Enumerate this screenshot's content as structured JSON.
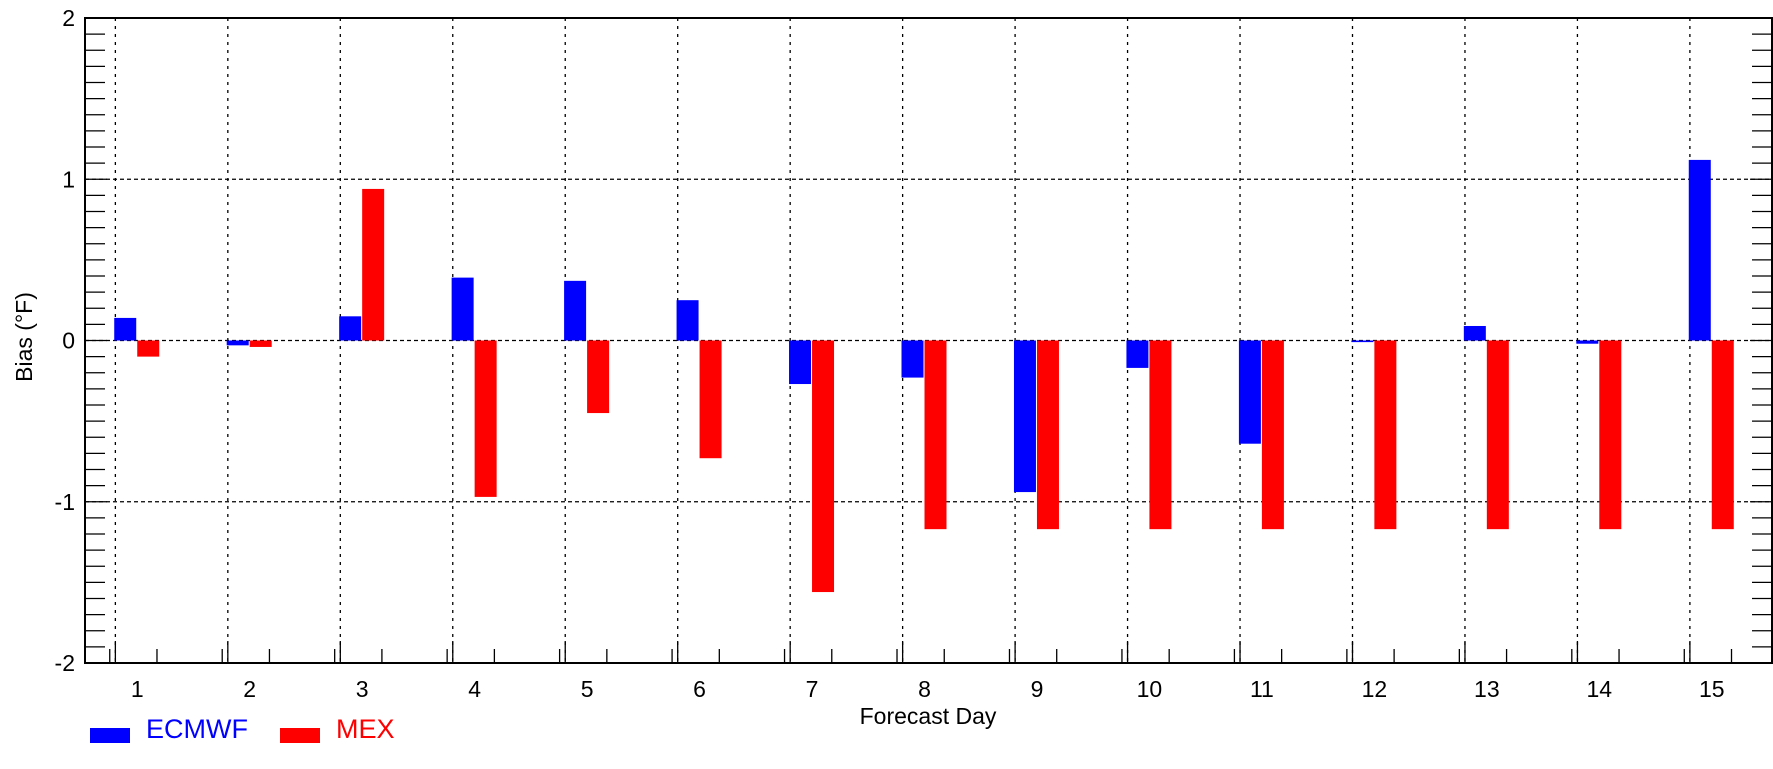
{
  "colors": {
    "ecmwf": "#0000ff",
    "mex": "#ff0000"
  },
  "chart_data": {
    "type": "bar",
    "title": "",
    "xlabel": "Forecast Day",
    "ylabel": "Bias (°F)",
    "ylim": [
      -2,
      2
    ],
    "yticks": [
      "-2",
      "-1",
      "0",
      "1",
      "2"
    ],
    "categories": [
      "1",
      "2",
      "3",
      "4",
      "5",
      "6",
      "7",
      "8",
      "9",
      "10",
      "11",
      "12",
      "13",
      "14",
      "15"
    ],
    "grid": true,
    "legend": "bottom-left",
    "series": [
      {
        "name": "ECMWF",
        "values": [
          0.14,
          -0.03,
          0.15,
          0.39,
          0.37,
          0.25,
          -0.27,
          -0.23,
          -0.94,
          -0.17,
          -0.64,
          -0.01,
          0.09,
          -0.02,
          1.12
        ]
      },
      {
        "name": "MEX",
        "values": [
          -0.1,
          -0.04,
          0.94,
          -0.97,
          -0.45,
          -0.73,
          -1.56,
          -1.17,
          -1.17,
          -1.17,
          -1.17,
          -1.17,
          -1.17,
          -1.17,
          -1.17
        ]
      }
    ]
  }
}
